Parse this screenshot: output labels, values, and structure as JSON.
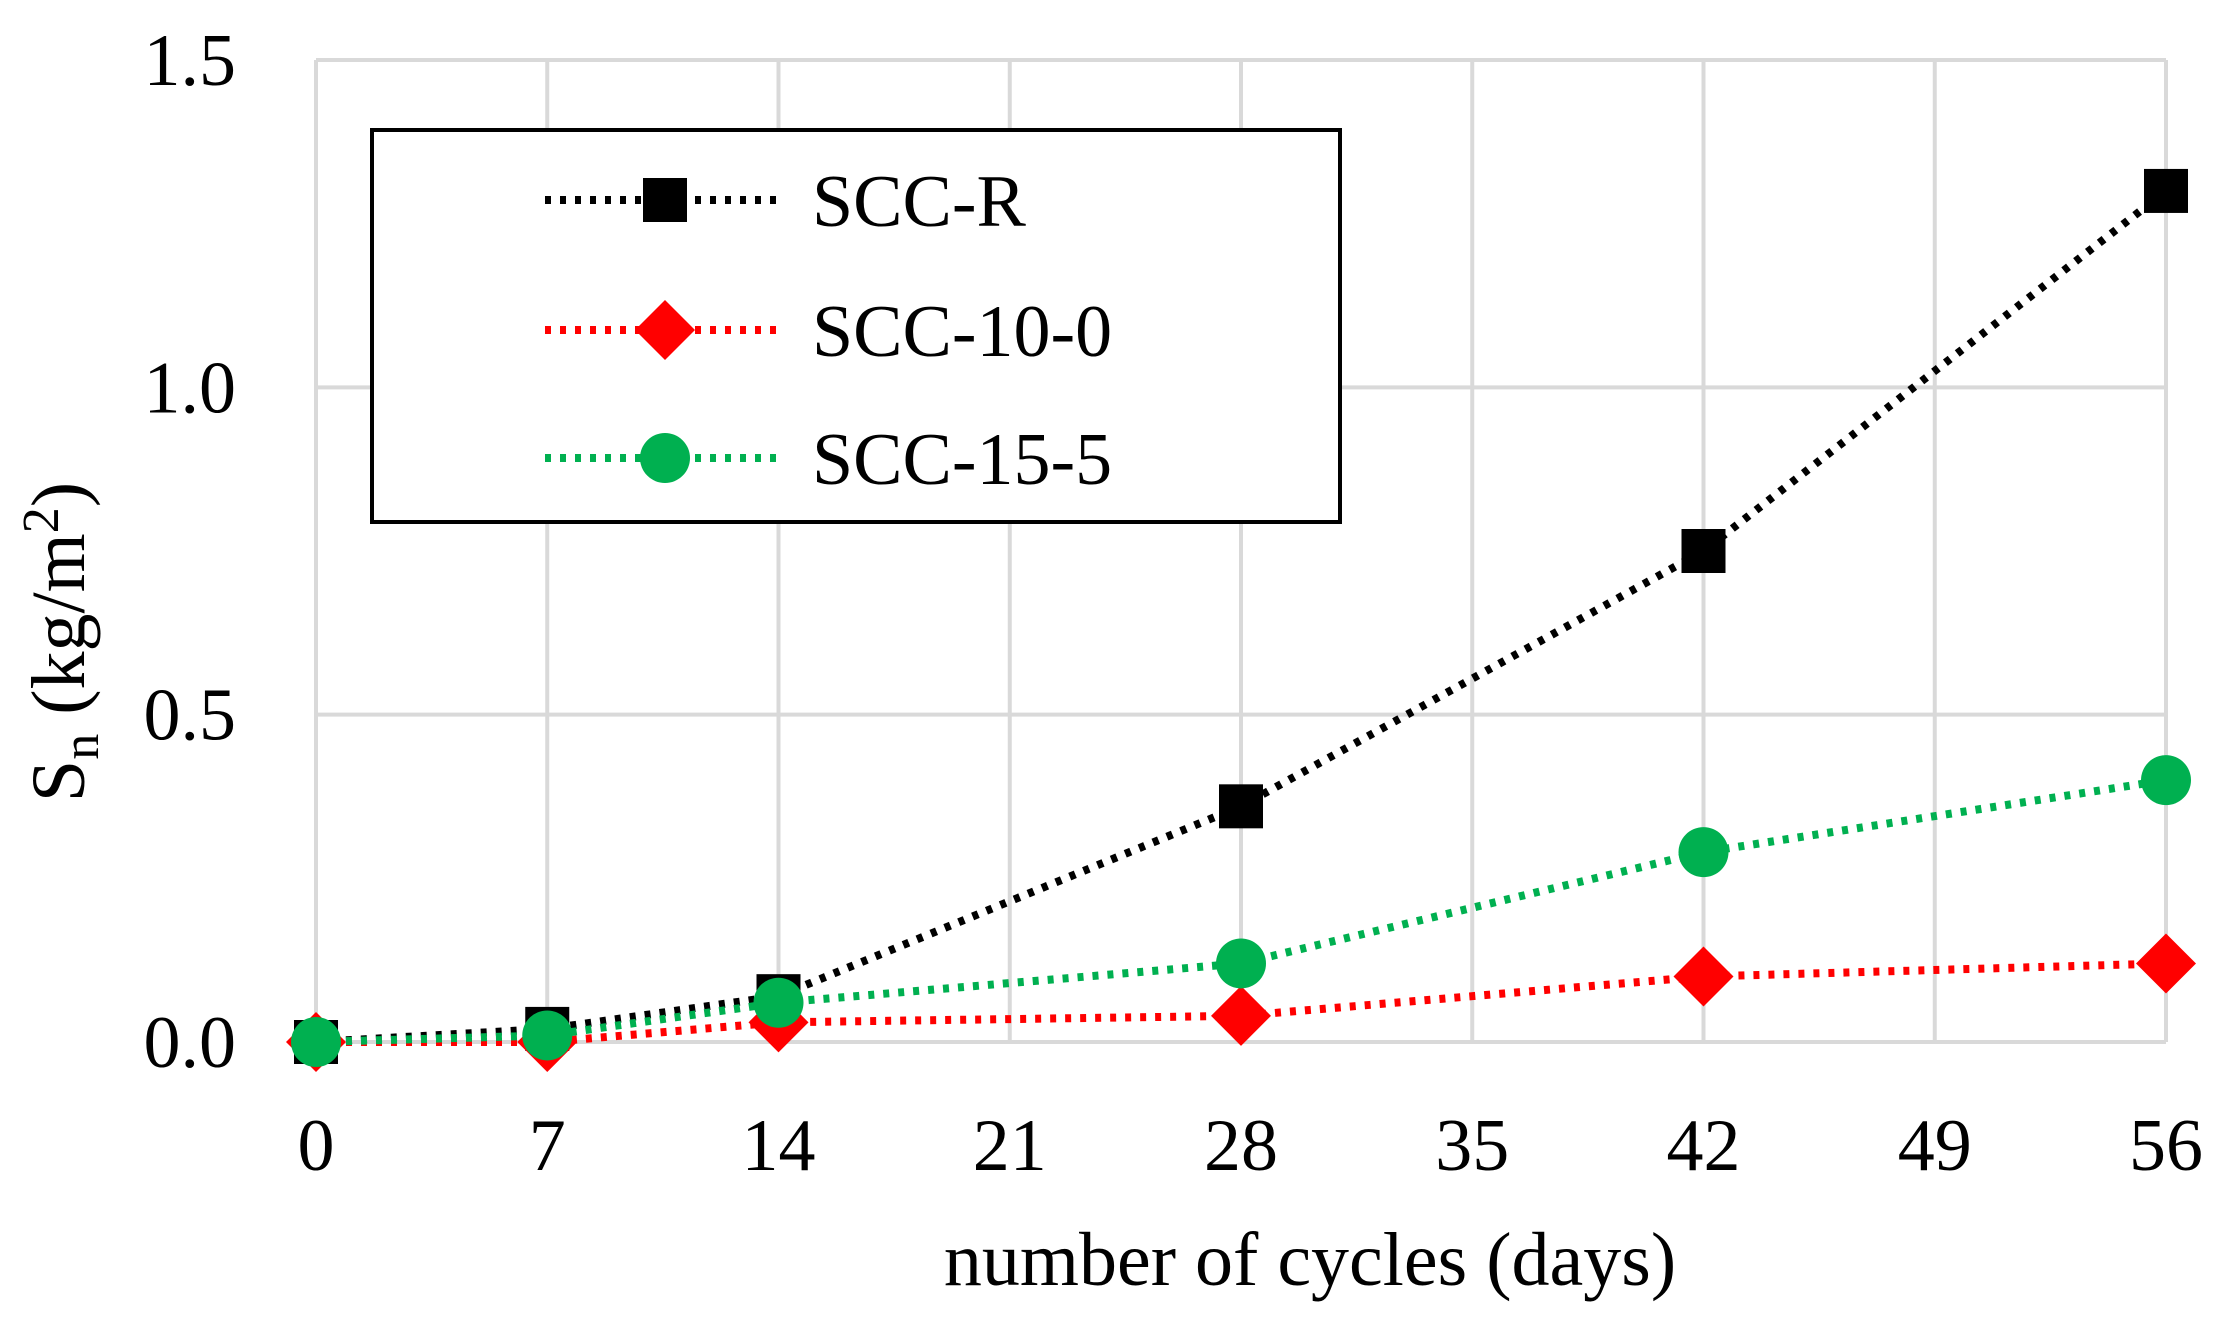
{
  "chart_data": {
    "type": "line",
    "title": "",
    "xlabel": "number of cycles (days)",
    "ylabel": {
      "main": "S",
      "sub": "n",
      "unit_prefix": " (kg/m",
      "unit_sup": "2",
      "unit_suffix": ")"
    },
    "x": [
      0,
      7,
      14,
      28,
      42,
      56
    ],
    "xticks": [
      "0",
      "7",
      "14",
      "21",
      "28",
      "35",
      "42",
      "49",
      "56"
    ],
    "xtick_values": [
      0,
      7,
      14,
      21,
      28,
      35,
      42,
      49,
      56
    ],
    "xlim": [
      0,
      56
    ],
    "yticks": [
      "0.0",
      "0.5",
      "1.0",
      "1.5"
    ],
    "ytick_values": [
      0,
      0.5,
      1.0,
      1.5
    ],
    "ylim": [
      0,
      1.5
    ],
    "grid": true,
    "legend_position": "top-left",
    "series": [
      {
        "name": "SCC-R",
        "marker": "square",
        "line_style": "dotted",
        "color": "#000000",
        "values": [
          0.0,
          0.02,
          0.07,
          0.36,
          0.75,
          1.3
        ]
      },
      {
        "name": "SCC-10-0",
        "marker": "diamond",
        "line_style": "dotted",
        "color": "#ff0000",
        "values": [
          0.0,
          0.0,
          0.03,
          0.04,
          0.1,
          0.12
        ]
      },
      {
        "name": "SCC-15-5",
        "marker": "circle",
        "line_style": "dotted",
        "color": "#00b050",
        "values": [
          0.0,
          0.01,
          0.06,
          0.12,
          0.29,
          0.4
        ]
      }
    ]
  }
}
